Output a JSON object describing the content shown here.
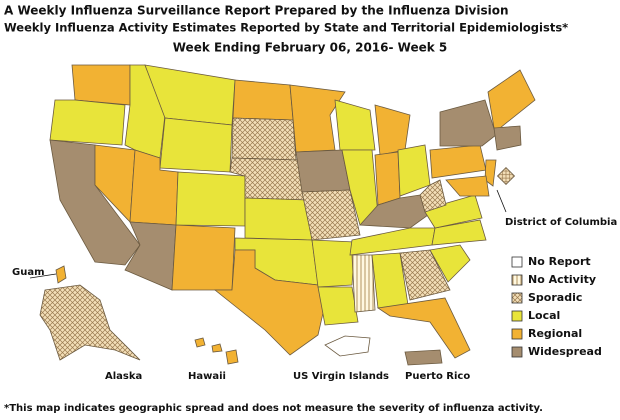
{
  "header": {
    "title": "A Weekly Influenza Surveillance Report Prepared by the Influenza Division",
    "subtitle": "Weekly Influenza Activity Estimates Reported by State and Territorial Epidemiologists*",
    "week": "Week Ending February 06, 2016- Week 5"
  },
  "map": {
    "labels": {
      "dc": "District of Columbia",
      "guam": "Guam",
      "alaska": "Alaska",
      "hawaii": "Hawaii",
      "virgin_islands": "US Virgin Islands",
      "puerto_rico": "Puerto Rico"
    }
  },
  "legend": {
    "items": [
      {
        "label": "No Report",
        "color": "#ffffff"
      },
      {
        "label": "No Activity",
        "color": "#fff8e0",
        "pattern": "vertical-lines"
      },
      {
        "label": "Sporadic",
        "color": "#f3dfb8",
        "pattern": "crosshatch"
      },
      {
        "label": "Local",
        "color": "#e8e43a"
      },
      {
        "label": "Regional",
        "color": "#f2b233"
      },
      {
        "label": "Widespread",
        "color": "#a58d6f"
      }
    ]
  },
  "footnote": "*This map indicates geographic spread and does not measure the severity of influenza activity."
}
